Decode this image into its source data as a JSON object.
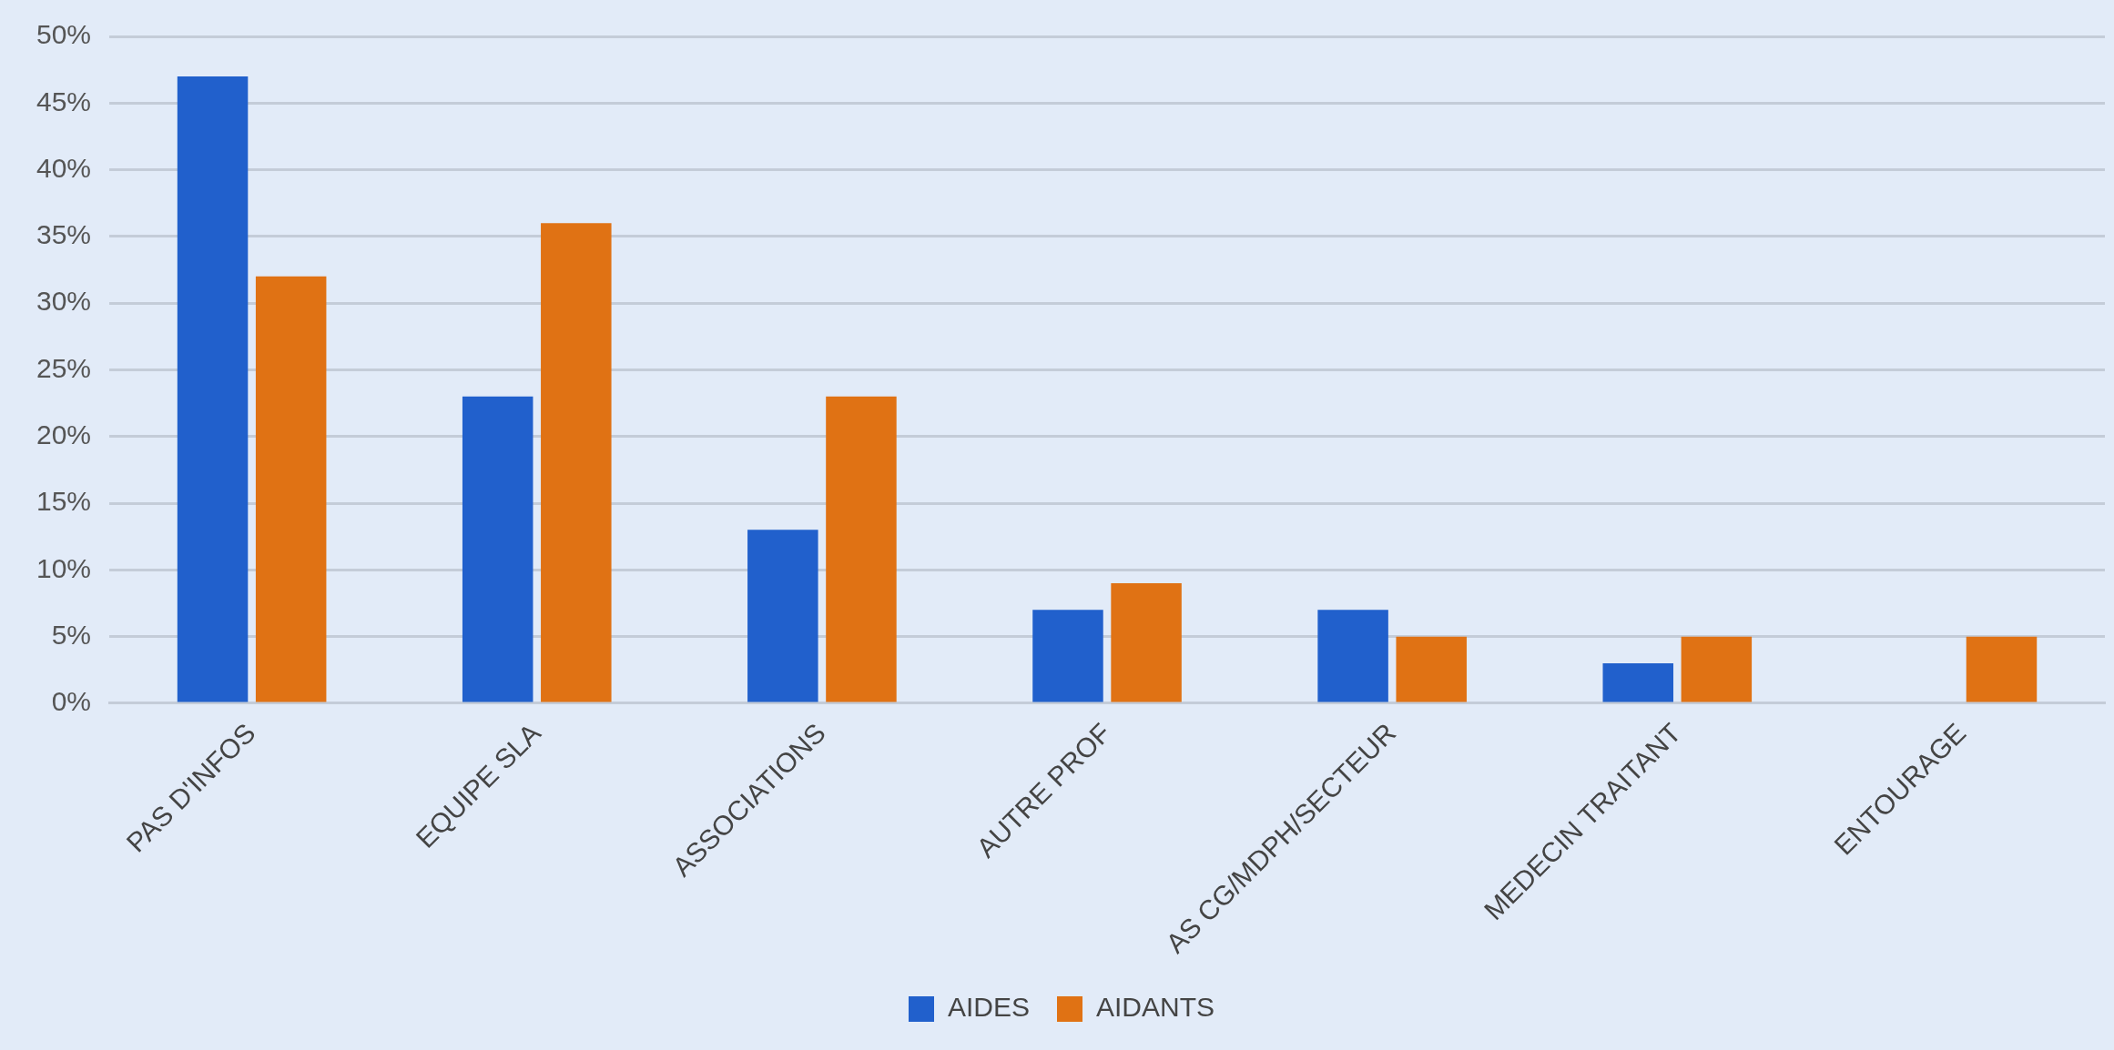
{
  "chart_data": {
    "type": "bar",
    "categories": [
      "PAS D'INFOS",
      "EQUIPE SLA",
      "ASSOCIATIONS",
      "AUTRE PROF",
      "AS CG/MDPH/SECTEUR",
      "MEDECIN TRAITANT",
      "ENTOURAGE"
    ],
    "series": [
      {
        "name": "AIDES",
        "color": "#2160cc",
        "values": [
          47,
          23,
          13,
          7,
          7,
          3,
          0
        ]
      },
      {
        "name": "AIDANTS",
        "color": "#e07214",
        "values": [
          32,
          36,
          23,
          9,
          5,
          5,
          5
        ]
      }
    ],
    "ylim": [
      0,
      50
    ],
    "yticks": [
      {
        "value": 0,
        "label": "0%"
      },
      {
        "value": 5,
        "label": "5%"
      },
      {
        "value": 10,
        "label": "10%"
      },
      {
        "value": 15,
        "label": "15%"
      },
      {
        "value": 20,
        "label": "20%"
      },
      {
        "value": 25,
        "label": "25%"
      },
      {
        "value": 30,
        "label": "30%"
      },
      {
        "value": 35,
        "label": "35%"
      },
      {
        "value": 40,
        "label": "40%"
      },
      {
        "value": 45,
        "label": "45%"
      },
      {
        "value": 50,
        "label": "50%"
      }
    ],
    "grid": "y",
    "legend": "bottom"
  }
}
